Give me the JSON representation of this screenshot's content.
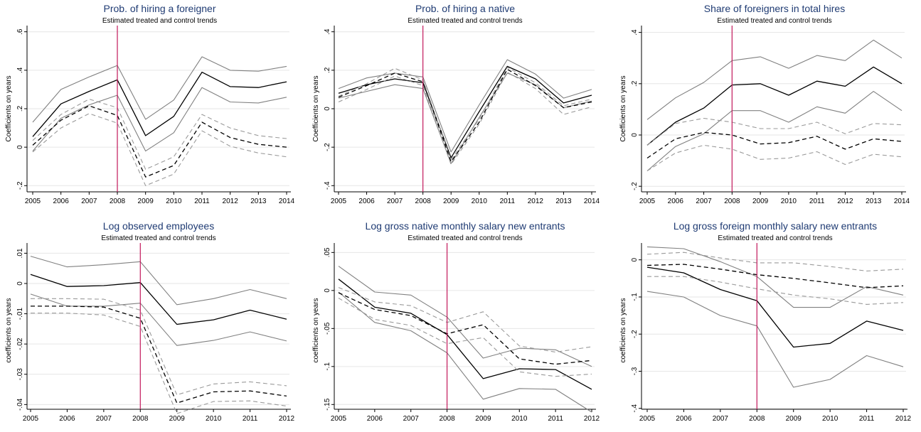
{
  "colors": {
    "title": "#1f3b73",
    "treated": "#000000",
    "treated_ci": "#808080",
    "control": "#000000",
    "control_ci": "#9a9a9a",
    "grid": "#e6e6e6",
    "vline": "#c2185b"
  },
  "chart_data": [
    {
      "type": "line",
      "title": "Prob. of hiring a foreigner",
      "subtitle": "Estimated treated and control trends",
      "ylabel": "Coefficients on years",
      "x": [
        2005,
        2006,
        2007,
        2008,
        2009,
        2010,
        2011,
        2012,
        2013,
        2014
      ],
      "ylim": [
        -0.21,
        0.61
      ],
      "yticks": [
        -0.2,
        0,
        0.2,
        0.4,
        0.6
      ],
      "ytick_labels": [
        "-.2",
        "0",
        ".2",
        ".4",
        ".6"
      ],
      "vline": 2008,
      "grid": true,
      "series": [
        {
          "style": "treated",
          "values": [
            0.055,
            0.225,
            0.29,
            0.35,
            0.06,
            0.16,
            0.39,
            0.315,
            0.31,
            0.34
          ]
        },
        {
          "style": "treated_ci",
          "values": [
            0.13,
            0.3,
            0.365,
            0.425,
            0.145,
            0.245,
            0.47,
            0.4,
            0.395,
            0.42
          ]
        },
        {
          "style": "treated_ci",
          "values": [
            -0.02,
            0.15,
            0.22,
            0.27,
            -0.02,
            0.075,
            0.31,
            0.235,
            0.23,
            0.26
          ]
        },
        {
          "style": "control",
          "values": [
            0.01,
            0.14,
            0.215,
            0.165,
            -0.155,
            -0.095,
            0.13,
            0.05,
            0.015,
            0.0
          ]
        },
        {
          "style": "control_ci",
          "values": [
            0.035,
            0.17,
            0.25,
            0.205,
            -0.115,
            -0.05,
            0.17,
            0.1,
            0.06,
            0.045
          ]
        },
        {
          "style": "control_ci",
          "values": [
            -0.025,
            0.1,
            0.175,
            0.125,
            -0.2,
            -0.14,
            0.085,
            0.005,
            -0.03,
            -0.05
          ]
        }
      ]
    },
    {
      "type": "line",
      "title": "Prob. of hiring a native",
      "subtitle": "Estimated treated and control trends",
      "ylabel": "Coefficients on years",
      "x": [
        2005,
        2006,
        2007,
        2008,
        2009,
        2010,
        2011,
        2012,
        2013,
        2014
      ],
      "ylim": [
        -0.41,
        0.41
      ],
      "yticks": [
        -0.4,
        -0.2,
        0,
        0.2,
        0.4
      ],
      "ytick_labels": [
        "-.4",
        "-.2",
        "0",
        ".2",
        ".4"
      ],
      "vline": 2008,
      "grid": true,
      "series": [
        {
          "style": "treated",
          "values": [
            0.08,
            0.125,
            0.155,
            0.135,
            -0.255,
            -0.015,
            0.22,
            0.155,
            0.03,
            0.07
          ]
        },
        {
          "style": "treated_ci",
          "values": [
            0.105,
            0.16,
            0.185,
            0.165,
            -0.225,
            0.02,
            0.255,
            0.18,
            0.055,
            0.1
          ]
        },
        {
          "style": "treated_ci",
          "values": [
            0.055,
            0.09,
            0.125,
            0.105,
            -0.285,
            -0.045,
            0.185,
            0.125,
            0.005,
            0.04
          ]
        },
        {
          "style": "control",
          "values": [
            0.06,
            0.12,
            0.185,
            0.14,
            -0.275,
            -0.07,
            0.205,
            0.12,
            0.005,
            0.035
          ]
        },
        {
          "style": "control_ci",
          "values": [
            0.065,
            0.13,
            0.21,
            0.15,
            -0.265,
            -0.055,
            0.215,
            0.135,
            0.015,
            0.05
          ]
        },
        {
          "style": "control_ci",
          "values": [
            0.035,
            0.1,
            0.17,
            0.12,
            -0.29,
            -0.08,
            0.19,
            0.105,
            -0.03,
            0.01
          ]
        }
      ]
    },
    {
      "type": "line",
      "title": "Share of foreigners in total hires",
      "subtitle": "Estimated treated and control trends",
      "ylabel": "Coefficients on years",
      "x": [
        2005,
        2006,
        2007,
        2008,
        2009,
        2010,
        2011,
        2012,
        2013,
        2014
      ],
      "ylim": [
        -0.205,
        0.41
      ],
      "yticks": [
        -0.2,
        0,
        0.2,
        0.4
      ],
      "ytick_labels": [
        "-.2",
        "0",
        ".2",
        ".4"
      ],
      "vline": 2008,
      "grid": true,
      "series": [
        {
          "style": "treated",
          "values": [
            -0.04,
            0.05,
            0.105,
            0.195,
            0.2,
            0.155,
            0.21,
            0.19,
            0.265,
            0.2
          ]
        },
        {
          "style": "treated_ci",
          "values": [
            0.06,
            0.145,
            0.205,
            0.29,
            0.305,
            0.26,
            0.31,
            0.29,
            0.37,
            0.3
          ]
        },
        {
          "style": "treated_ci",
          "values": [
            -0.14,
            -0.045,
            0.005,
            0.095,
            0.095,
            0.05,
            0.11,
            0.085,
            0.17,
            0.095
          ]
        },
        {
          "style": "control",
          "values": [
            -0.09,
            -0.015,
            0.01,
            0.0,
            -0.035,
            -0.03,
            -0.005,
            -0.055,
            -0.015,
            -0.025
          ]
        },
        {
          "style": "control_ci",
          "values": [
            -0.04,
            0.045,
            0.065,
            0.05,
            0.025,
            0.025,
            0.05,
            0.005,
            0.045,
            0.04
          ]
        },
        {
          "style": "control_ci",
          "values": [
            -0.14,
            -0.07,
            -0.04,
            -0.055,
            -0.095,
            -0.09,
            -0.065,
            -0.115,
            -0.075,
            -0.085
          ]
        }
      ]
    },
    {
      "type": "line",
      "title": "Log observed employees",
      "subtitle": "Estimated treated and control trends",
      "ylabel": "coefficients on years",
      "x": [
        2005,
        2006,
        2007,
        2008,
        2009,
        2010,
        2011,
        2012
      ],
      "ylim": [
        -0.0425,
        0.0115
      ],
      "yticks": [
        -0.04,
        -0.03,
        -0.02,
        -0.01,
        0,
        0.01
      ],
      "ytick_labels": [
        "-.04",
        "-.03",
        "-.02",
        "-.01",
        "0",
        ".01"
      ],
      "vline": 2008,
      "grid": true,
      "series": [
        {
          "style": "treated",
          "values": [
            0.003,
            -0.001,
            -0.0007,
            0.0003,
            -0.0135,
            -0.012,
            -0.0088,
            -0.0118
          ]
        },
        {
          "style": "treated_ci",
          "values": [
            0.009,
            0.0055,
            0.0062,
            0.0072,
            -0.007,
            -0.005,
            -0.002,
            -0.005
          ]
        },
        {
          "style": "treated_ci",
          "values": [
            -0.0035,
            -0.0075,
            -0.0075,
            -0.0065,
            -0.0205,
            -0.0188,
            -0.016,
            -0.019
          ]
        },
        {
          "style": "control",
          "values": [
            -0.0075,
            -0.0075,
            -0.0078,
            -0.0115,
            -0.0395,
            -0.0358,
            -0.0355,
            -0.0372
          ]
        },
        {
          "style": "control_ci",
          "values": [
            -0.005,
            -0.005,
            -0.0052,
            -0.0088,
            -0.0368,
            -0.0332,
            -0.0325,
            -0.0338
          ]
        },
        {
          "style": "control_ci",
          "values": [
            -0.0098,
            -0.0098,
            -0.0104,
            -0.0142,
            -0.043,
            -0.039,
            -0.0388,
            -0.0405
          ]
        }
      ]
    },
    {
      "type": "line",
      "title": "Log gross native monthly salary new entrants",
      "subtitle": "Estimated treated and control trends",
      "ylabel": "coefficients on years",
      "x": [
        2005,
        2006,
        2007,
        2008,
        2009,
        2010,
        2011,
        2012
      ],
      "ylim": [
        -0.16,
        0.055
      ],
      "yticks": [
        -0.15,
        -0.1,
        -0.05,
        0,
        0.05
      ],
      "ytick_labels": [
        "-.15",
        "-.1",
        "-.05",
        "0",
        ".05"
      ],
      "vline": 2008,
      "grid": true,
      "series": [
        {
          "style": "treated",
          "values": [
            0.015,
            -0.022,
            -0.03,
            -0.058,
            -0.116,
            -0.103,
            -0.104,
            -0.13
          ]
        },
        {
          "style": "treated_ci",
          "values": [
            0.032,
            -0.002,
            -0.006,
            -0.035,
            -0.089,
            -0.076,
            -0.078,
            -0.1
          ]
        },
        {
          "style": "treated_ci",
          "values": [
            -0.002,
            -0.042,
            -0.053,
            -0.082,
            -0.143,
            -0.129,
            -0.13,
            -0.16
          ]
        },
        {
          "style": "control",
          "values": [
            -0.003,
            -0.025,
            -0.033,
            -0.057,
            -0.045,
            -0.09,
            -0.097,
            -0.092
          ]
        },
        {
          "style": "control_ci",
          "values": [
            0.004,
            -0.015,
            -0.02,
            -0.042,
            -0.028,
            -0.073,
            -0.081,
            -0.074
          ]
        },
        {
          "style": "control_ci",
          "values": [
            -0.01,
            -0.038,
            -0.046,
            -0.07,
            -0.062,
            -0.107,
            -0.113,
            -0.11
          ]
        }
      ]
    },
    {
      "type": "line",
      "title": "Log gross foreign monthly salary new entrants",
      "subtitle": "Estimated treated and control trends",
      "ylabel": "coefficients on years",
      "x": [
        2005,
        2006,
        2007,
        2008,
        2009,
        2010,
        2011,
        2012
      ],
      "ylim": [
        -0.41,
        0.03
      ],
      "yticks": [
        -0.4,
        -0.3,
        -0.2,
        -0.1,
        0
      ],
      "ytick_labels": [
        "-.4",
        "-.3",
        "-.2",
        "-.1",
        "0"
      ],
      "vline": 2008,
      "grid": true,
      "series": [
        {
          "style": "treated",
          "values": [
            -0.02,
            -0.035,
            -0.08,
            -0.11,
            -0.235,
            -0.225,
            -0.165,
            -0.19
          ]
        },
        {
          "style": "treated_ci",
          "values": [
            0.035,
            0.03,
            -0.005,
            -0.045,
            -0.128,
            -0.128,
            -0.072,
            -0.095
          ]
        },
        {
          "style": "treated_ci",
          "values": [
            -0.085,
            -0.1,
            -0.15,
            -0.178,
            -0.343,
            -0.322,
            -0.258,
            -0.288
          ]
        },
        {
          "style": "control",
          "values": [
            -0.015,
            -0.012,
            -0.025,
            -0.04,
            -0.05,
            -0.062,
            -0.075,
            -0.07
          ]
        },
        {
          "style": "control_ci",
          "values": [
            0.015,
            0.02,
            0.005,
            -0.008,
            -0.008,
            -0.018,
            -0.03,
            -0.025
          ]
        },
        {
          "style": "control_ci",
          "values": [
            -0.045,
            -0.045,
            -0.06,
            -0.078,
            -0.095,
            -0.105,
            -0.12,
            -0.115
          ]
        }
      ]
    }
  ]
}
